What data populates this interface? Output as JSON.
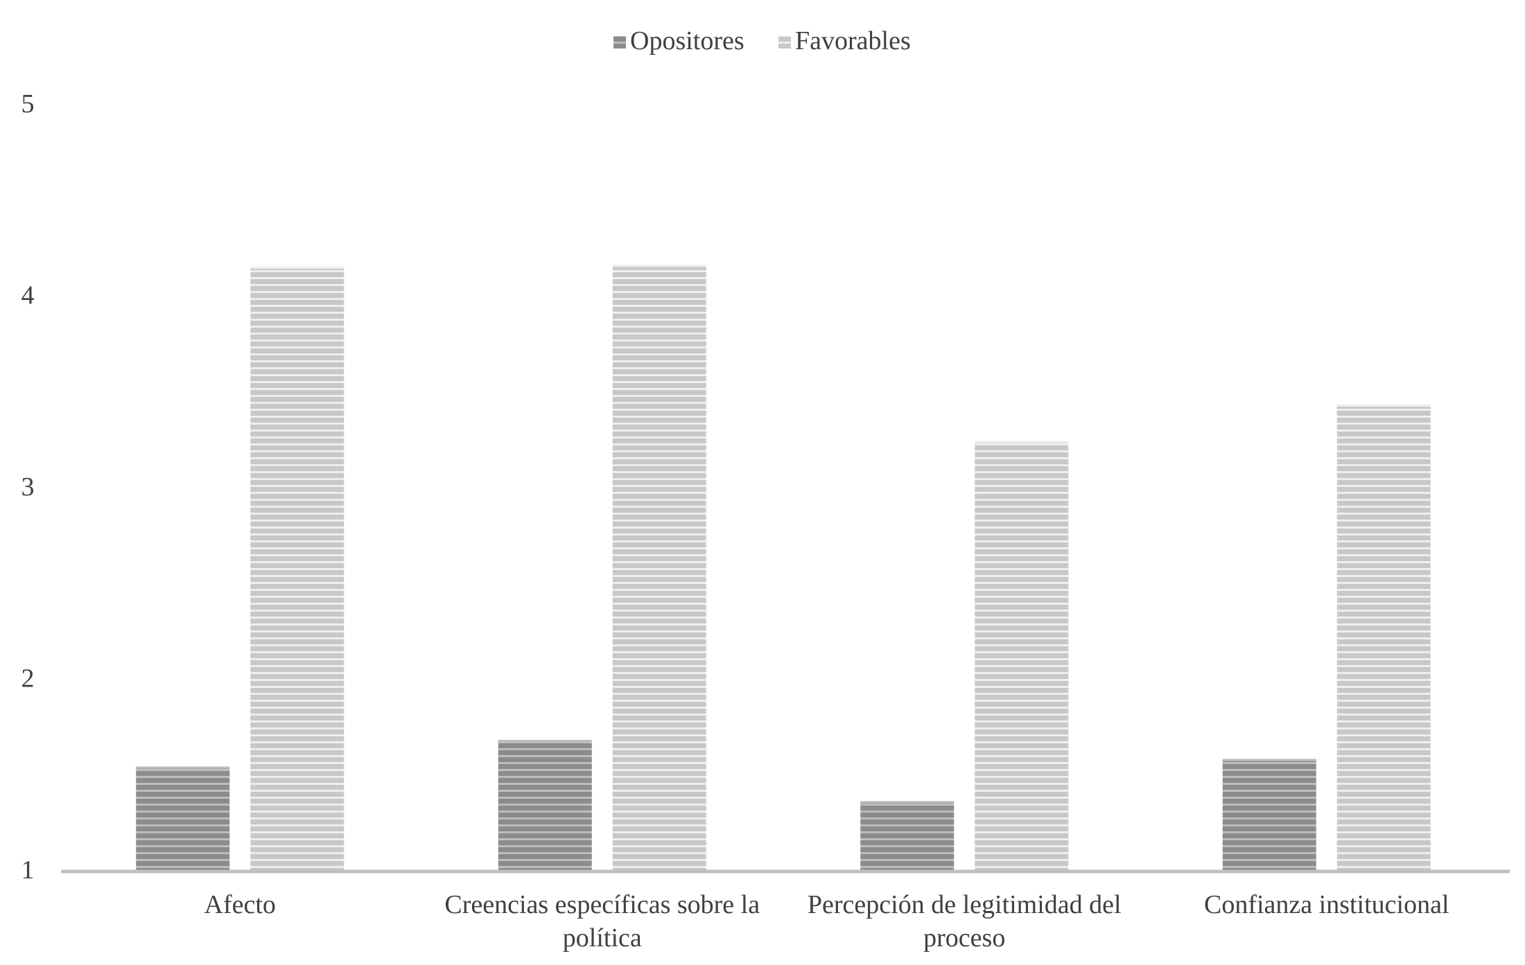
{
  "chart_data": {
    "type": "bar",
    "title": "",
    "xlabel": "",
    "ylabel": "",
    "categories": [
      [
        "Afecto"
      ],
      [
        "Creencias específicas sobre la",
        "política"
      ],
      [
        "Percepción de legitimidad del",
        "proceso"
      ],
      [
        "Confianza institucional"
      ]
    ],
    "series": [
      {
        "name": "Opositores",
        "values": [
          1.54,
          1.68,
          1.36,
          1.58
        ],
        "color": "#8c8c8c",
        "stripe_color": "#bdbdbd"
      },
      {
        "name": "Favorables",
        "values": [
          4.15,
          4.16,
          3.24,
          3.43
        ],
        "color": "#c8c8c8",
        "stripe_color": "#eeeeee"
      }
    ],
    "ylim": [
      1,
      5
    ],
    "yticks": [
      "1",
      "2",
      "3",
      "4",
      "5"
    ],
    "grid": false,
    "legend_position": "top-center",
    "axis_color": "#bfbfbf"
  }
}
